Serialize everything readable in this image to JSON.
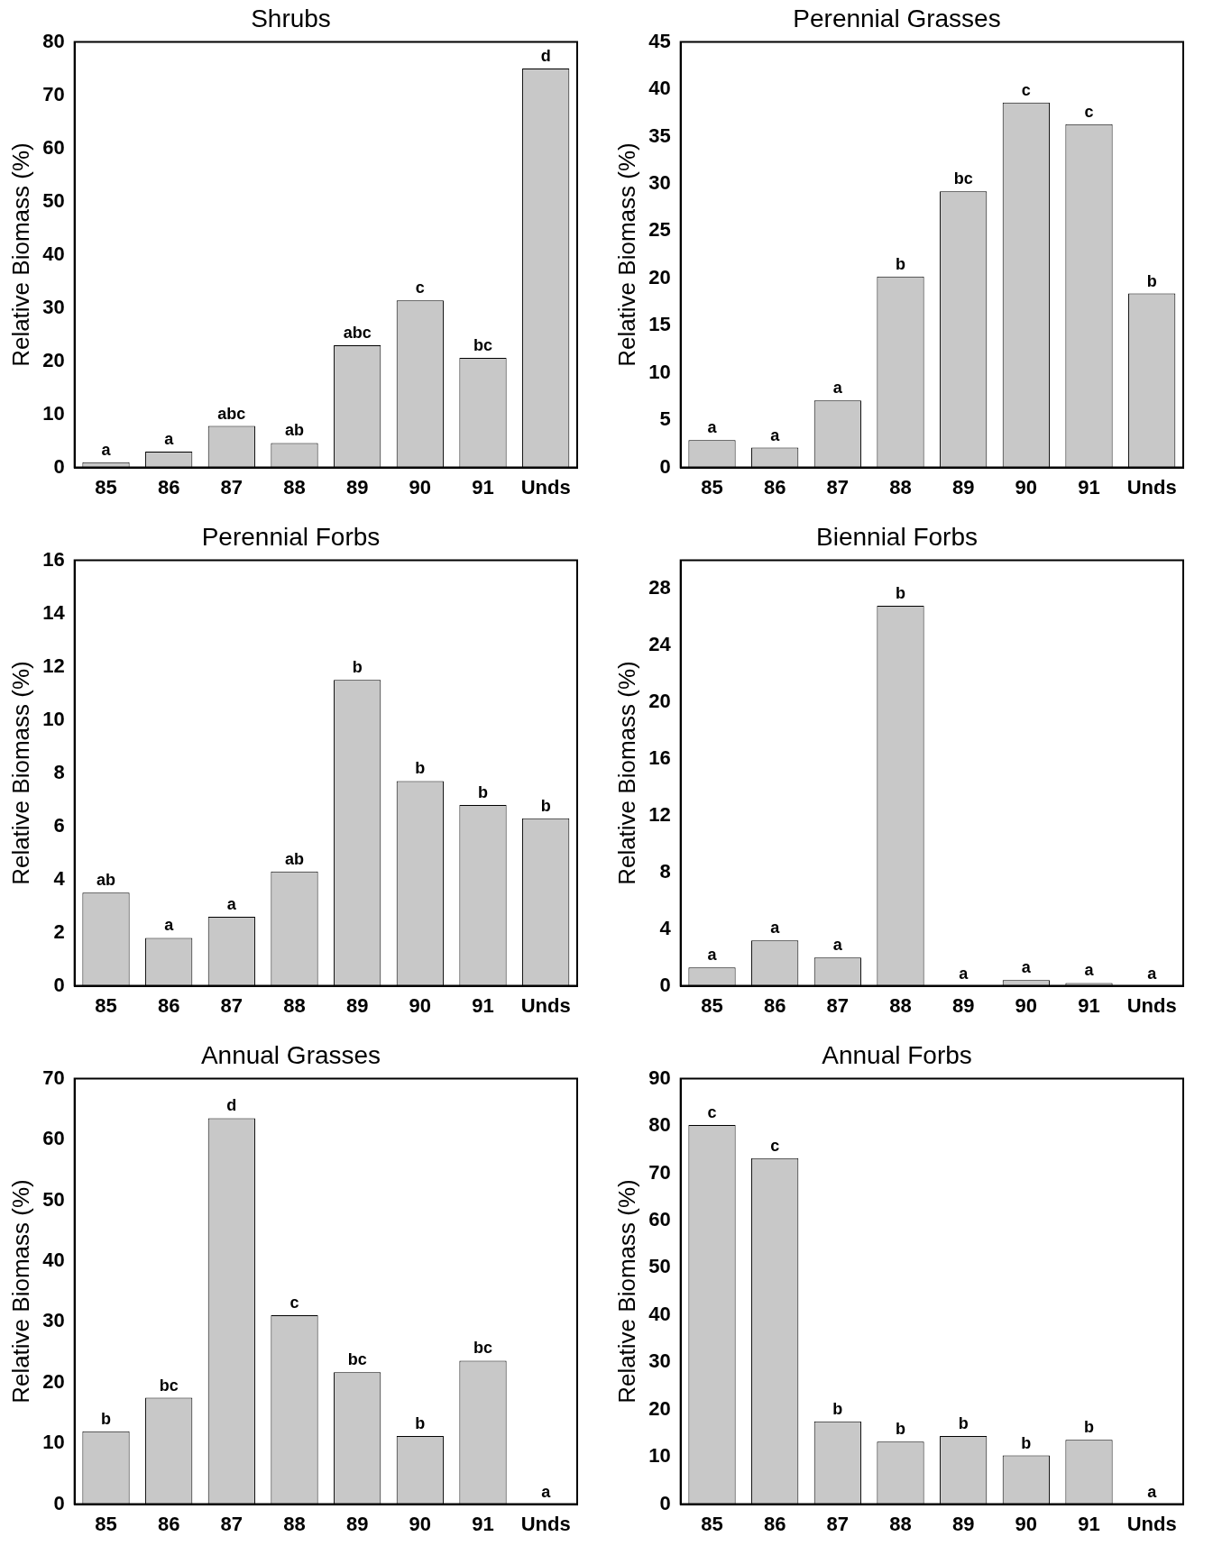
{
  "chart_data": [
    {
      "type": "bar",
      "title": "Shrubs",
      "ylabel": "Relative Biomass (%)",
      "categories": [
        "85",
        "86",
        "87",
        "88",
        "89",
        "90",
        "91",
        "Unds"
      ],
      "values": [
        1,
        3,
        7.8,
        4.6,
        23,
        31.4,
        20.6,
        75
      ],
      "color": "#c8c8c8",
      "ylim": [
        0,
        80
      ],
      "yticks": [
        0,
        10,
        20,
        30,
        40,
        50,
        60,
        70,
        80
      ],
      "annotations": [
        {
          "text": "a",
          "x": "85",
          "y": 1
        },
        {
          "text": "a",
          "x": "86",
          "y": 3
        },
        {
          "text": "abc",
          "x": "87",
          "y": 7.8
        },
        {
          "text": "ab",
          "x": "88",
          "y": 4.6
        },
        {
          "text": "abc",
          "x": "89",
          "y": 23
        },
        {
          "text": "c",
          "x": "90",
          "y": 31.4
        },
        {
          "text": "bc",
          "x": "91",
          "y": 20.6
        },
        {
          "text": "d",
          "x": "Unds",
          "y": 75
        }
      ]
    },
    {
      "type": "bar",
      "title": "Perennial Grasses",
      "ylabel": "Relative Biomass (%)",
      "categories": [
        "85",
        "86",
        "87",
        "88",
        "89",
        "90",
        "91",
        "Unds"
      ],
      "values": [
        2.9,
        2.1,
        7.1,
        20.2,
        29.2,
        38.6,
        36.3,
        18.4
      ],
      "color": "#c8c8c8",
      "ylim": [
        0,
        45
      ],
      "yticks": [
        0,
        5,
        10,
        15,
        20,
        25,
        30,
        35,
        40,
        45
      ],
      "annotations": [
        {
          "text": "a",
          "x": "85",
          "y": 2.9
        },
        {
          "text": "a",
          "x": "86",
          "y": 2.1
        },
        {
          "text": "a",
          "x": "87",
          "y": 7.1
        },
        {
          "text": "b",
          "x": "88",
          "y": 20.2
        },
        {
          "text": "bc",
          "x": "89",
          "y": 29.2
        },
        {
          "text": "c",
          "x": "90",
          "y": 38.6
        },
        {
          "text": "c",
          "x": "91",
          "y": 36.3
        },
        {
          "text": "b",
          "x": "Unds",
          "y": 18.4
        }
      ]
    },
    {
      "type": "bar",
      "title": "Perennial Forbs",
      "ylabel": "Relative Biomass (%)",
      "categories": [
        "85",
        "86",
        "87",
        "88",
        "89",
        "90",
        "91",
        "Unds"
      ],
      "values": [
        3.5,
        1.8,
        2.6,
        4.3,
        11.5,
        7.7,
        6.8,
        6.3
      ],
      "color": "#c8c8c8",
      "ylim": [
        0,
        16
      ],
      "yticks": [
        0,
        2,
        4,
        6,
        8,
        10,
        12,
        14,
        16
      ],
      "annotations": [
        {
          "text": "ab",
          "x": "85",
          "y": 3.5
        },
        {
          "text": "a",
          "x": "86",
          "y": 1.8
        },
        {
          "text": "a",
          "x": "87",
          "y": 2.6
        },
        {
          "text": "ab",
          "x": "88",
          "y": 4.3
        },
        {
          "text": "b",
          "x": "89",
          "y": 11.5
        },
        {
          "text": "b",
          "x": "90",
          "y": 7.7
        },
        {
          "text": "b",
          "x": "91",
          "y": 6.8
        },
        {
          "text": "b",
          "x": "Unds",
          "y": 6.3
        }
      ]
    },
    {
      "type": "bar",
      "title": "Biennial Forbs",
      "ylabel": "Relative Biomass (%)",
      "categories": [
        "85",
        "86",
        "87",
        "88",
        "89",
        "90",
        "91",
        "Unds"
      ],
      "values": [
        1.3,
        3.2,
        2,
        26.8,
        0,
        0.4,
        0.2,
        0
      ],
      "color": "#c8c8c8",
      "ylim": [
        0,
        30
      ],
      "yticks": [
        0,
        4,
        8,
        12,
        16,
        20,
        24,
        28
      ],
      "annotations": [
        {
          "text": "a",
          "x": "85",
          "y": 1.3
        },
        {
          "text": "a",
          "x": "86",
          "y": 3.2
        },
        {
          "text": "a",
          "x": "87",
          "y": 2
        },
        {
          "text": "b",
          "x": "88",
          "y": 26.8
        },
        {
          "text": "a",
          "x": "89",
          "y": 0
        },
        {
          "text": "a",
          "x": "90",
          "y": 0.4
        },
        {
          "text": "a",
          "x": "91",
          "y": 0.2
        },
        {
          "text": "a",
          "x": "Unds",
          "y": 0
        }
      ]
    },
    {
      "type": "bar",
      "title": "Annual Grasses",
      "ylabel": "Relative Biomass (%)",
      "categories": [
        "85",
        "86",
        "87",
        "88",
        "89",
        "90",
        "91",
        "Unds"
      ],
      "values": [
        12,
        17.5,
        63.5,
        31.1,
        21.7,
        11.2,
        23.6,
        0
      ],
      "color": "#c8c8c8",
      "ylim": [
        0,
        70
      ],
      "yticks": [
        0,
        10,
        20,
        30,
        40,
        50,
        60,
        70
      ],
      "annotations": [
        {
          "text": "b",
          "x": "85",
          "y": 12
        },
        {
          "text": "bc",
          "x": "86",
          "y": 17.5
        },
        {
          "text": "d",
          "x": "87",
          "y": 63.5
        },
        {
          "text": "c",
          "x": "88",
          "y": 31.1
        },
        {
          "text": "bc",
          "x": "89",
          "y": 21.7
        },
        {
          "text": "b",
          "x": "90",
          "y": 11.2
        },
        {
          "text": "bc",
          "x": "91",
          "y": 23.6
        },
        {
          "text": "a",
          "x": "Unds",
          "y": 0
        }
      ]
    },
    {
      "type": "bar",
      "title": "Annual Forbs",
      "ylabel": "Relative Biomass (%)",
      "categories": [
        "85",
        "86",
        "87",
        "88",
        "89",
        "90",
        "91",
        "Unds"
      ],
      "values": [
        80.2,
        73.2,
        17.5,
        13.2,
        14.4,
        10.3,
        13.6,
        0
      ],
      "color": "#c8c8c8",
      "ylim": [
        0,
        90
      ],
      "yticks": [
        0,
        10,
        20,
        30,
        40,
        50,
        60,
        70,
        80,
        90
      ],
      "annotations": [
        {
          "text": "c",
          "x": "85",
          "y": 80.2
        },
        {
          "text": "c",
          "x": "86",
          "y": 73.2
        },
        {
          "text": "b",
          "x": "87",
          "y": 17.5
        },
        {
          "text": "b",
          "x": "88",
          "y": 13.2
        },
        {
          "text": "b",
          "x": "89",
          "y": 14.4
        },
        {
          "text": "b",
          "x": "90",
          "y": 10.3
        },
        {
          "text": "b",
          "x": "91",
          "y": 13.6
        },
        {
          "text": "a",
          "x": "Unds",
          "y": 0
        }
      ]
    }
  ]
}
